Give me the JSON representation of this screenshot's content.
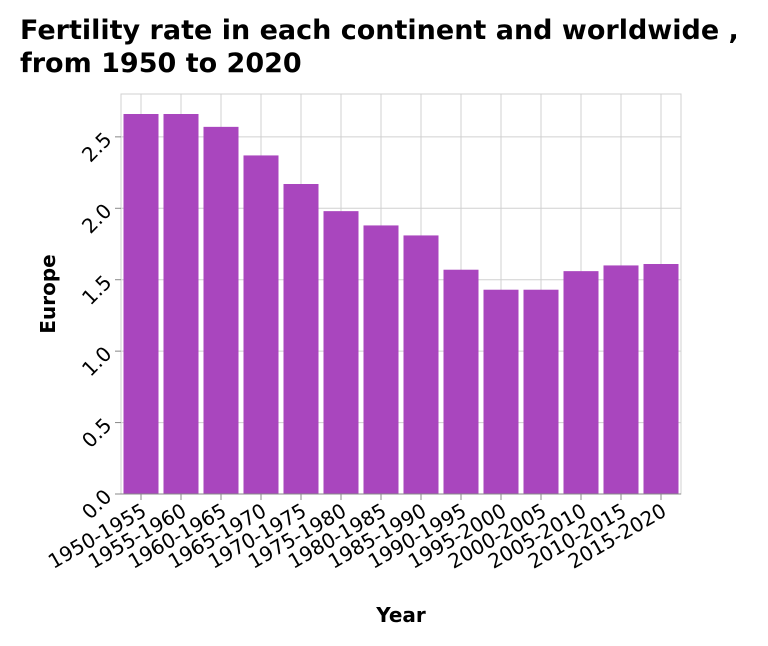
{
  "chart_data": {
    "type": "bar",
    "title": "Fertility rate in each continent and worldwide , from 1950 to 2020",
    "xlabel": "Year",
    "ylabel": "Europe",
    "categories": [
      "1950-1955",
      "1955-1960",
      "1960-1965",
      "1965-1970",
      "1970-1975",
      "1975-1980",
      "1980-1985",
      "1985-1990",
      "1990-1995",
      "1995-2000",
      "2000-2005",
      "2005-2010",
      "2010-2015",
      "2015-2020"
    ],
    "values": [
      2.66,
      2.66,
      2.57,
      2.37,
      2.17,
      1.98,
      1.88,
      1.81,
      1.57,
      1.43,
      1.43,
      1.56,
      1.6,
      1.61
    ],
    "ylim": [
      0,
      2.8
    ],
    "yticks": [
      "0.0",
      "0.5",
      "1.0",
      "1.5",
      "2.0",
      "2.5"
    ],
    "bar_color": "#a946be",
    "grid": true
  }
}
